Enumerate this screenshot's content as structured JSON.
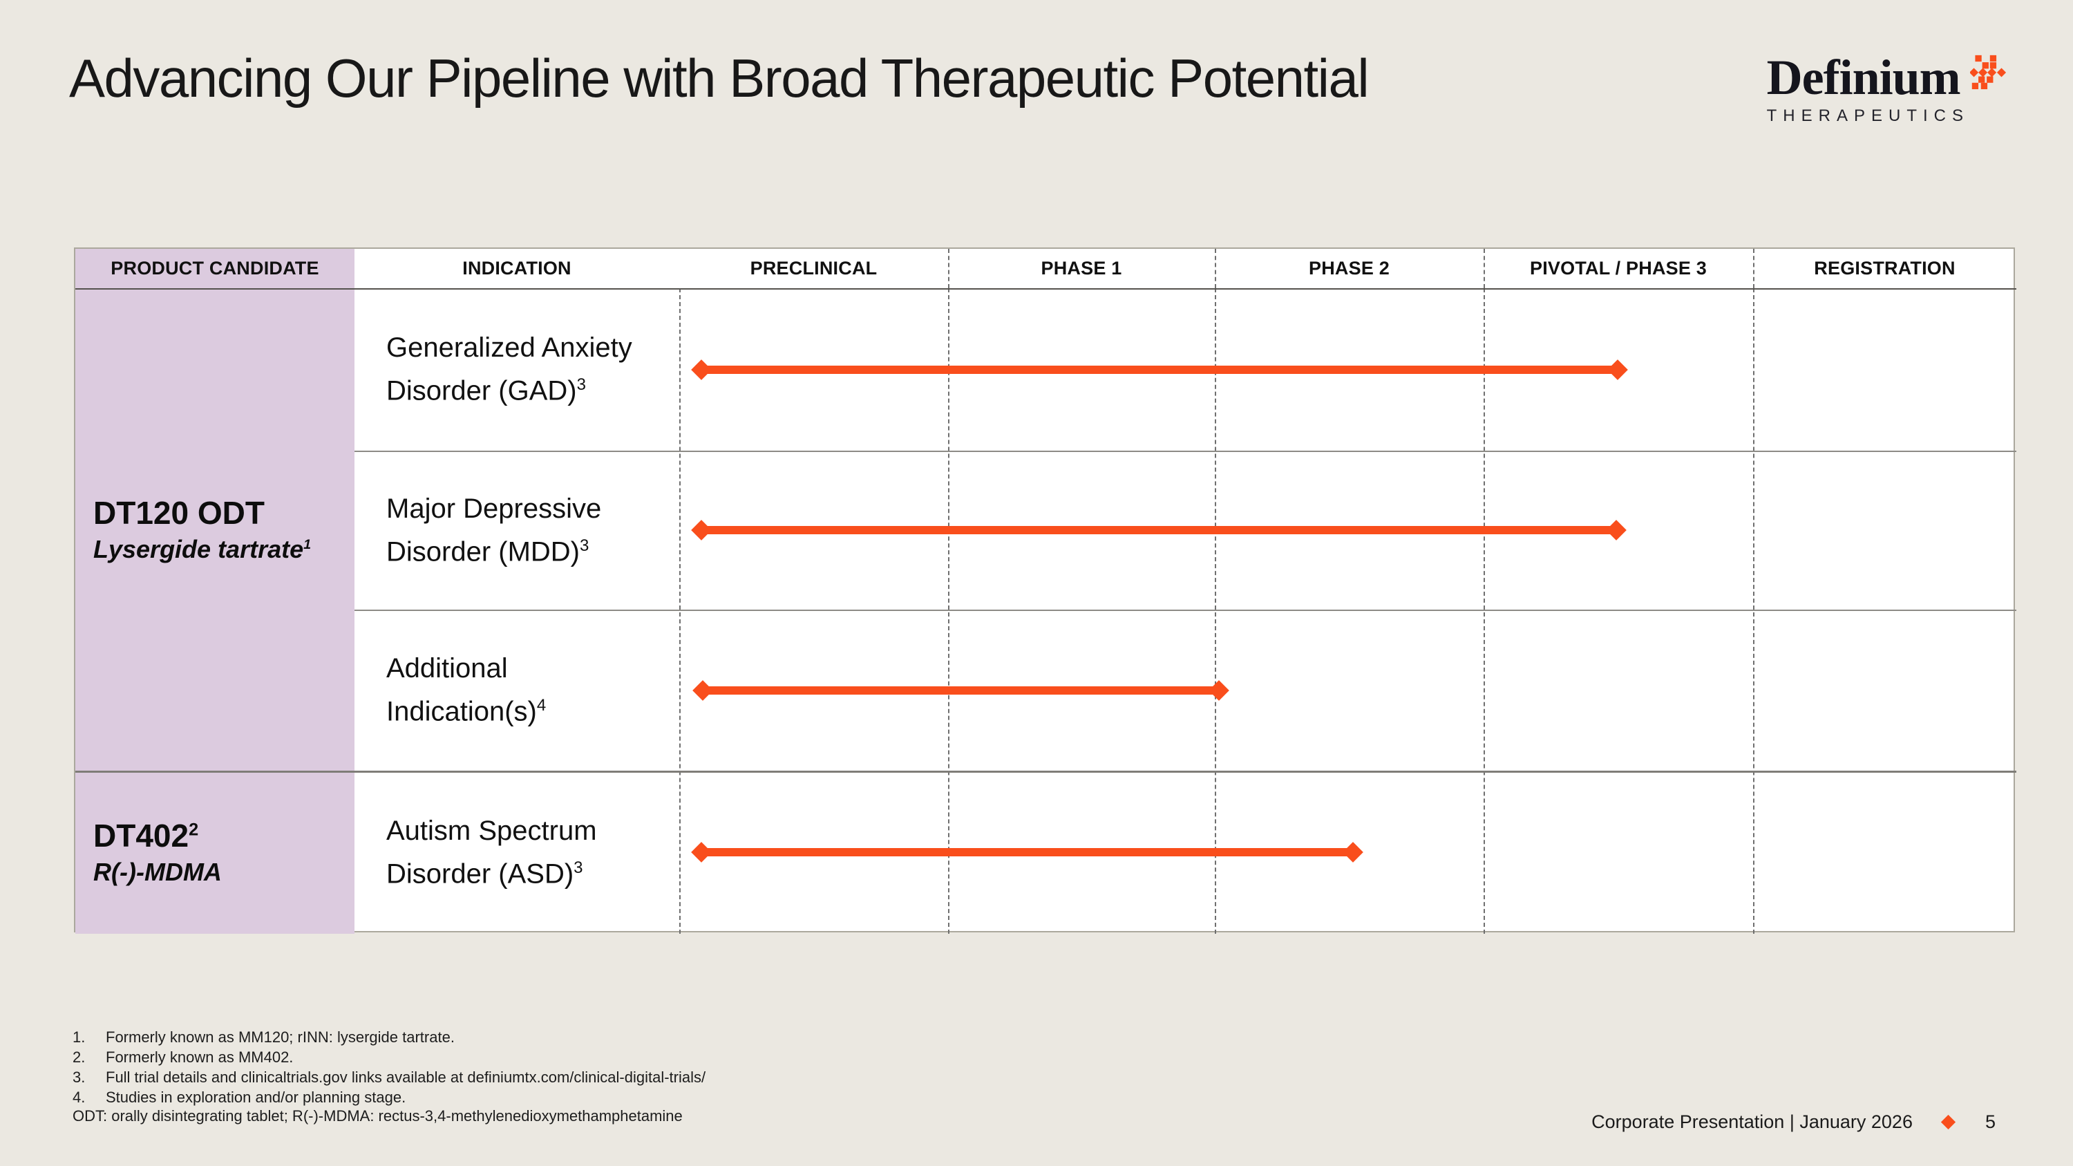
{
  "slide": {
    "title": "Advancing Our Pipeline with Broad Therapeutic Potential",
    "logo": {
      "name": "Definium",
      "subtitle": "THERAPEUTICS"
    },
    "footer": {
      "text": "Corporate Presentation | January 2026",
      "page": "5"
    }
  },
  "colors": {
    "background": "#EBE8E1",
    "accent_orange": "#F94E1C",
    "lavender": "#DCCBDF",
    "table_white": "#FFFFFF",
    "text": "#161616"
  },
  "table": {
    "headers": [
      "PRODUCT CANDIDATE",
      "INDICATION",
      "PRECLINICAL",
      "PHASE 1",
      "PHASE 2",
      "PIVOTAL / PHASE 3",
      "REGISTRATION"
    ],
    "products": [
      {
        "name": "DT120 ODT",
        "name_sup": "",
        "subtitle": "Lysergide tartrate",
        "subtitle_sup": "1",
        "rows": [
          {
            "lines": [
              "Generalized Anxiety",
              "Disorder (GAD)"
            ],
            "sup": "3",
            "bar": {
              "start": 0.0165,
              "end": 0.702,
              "stages_spanned": "Preclinical through mid Pivotal / Phase 3"
            }
          },
          {
            "lines": [
              "Major Depressive",
              "Disorder (MDD)"
            ],
            "sup": "3",
            "bar": {
              "start": 0.0165,
              "end": 0.701,
              "stages_spanned": "Preclinical through mid Pivotal / Phase 3"
            }
          },
          {
            "lines": [
              "Additional",
              "Indication(s)"
            ],
            "sup": "4",
            "bar": {
              "start": 0.0176,
              "end": 0.4036,
              "stages_spanned": "Preclinical through end of Phase 1"
            }
          }
        ]
      },
      {
        "name": "DT402",
        "name_sup": "2",
        "subtitle": "R(-)-MDMA",
        "subtitle_sup": "",
        "rows": [
          {
            "lines": [
              "Autism Spectrum",
              "Disorder (ASD)"
            ],
            "sup": "3",
            "bar": {
              "start": 0.0165,
              "end": 0.5039,
              "stages_spanned": "Preclinical through mid Phase 2"
            }
          }
        ]
      }
    ]
  },
  "footnotes": [
    {
      "num": "1.",
      "text": "Formerly known as MM120; rINN: lysergide tartrate."
    },
    {
      "num": "2.",
      "text": "Formerly known as MM402."
    },
    {
      "num": "3.",
      "text": "Full trial details and clinicaltrials.gov links available at definiumtx.com/clinical-digital-trials/"
    },
    {
      "num": "4.",
      "text": "Studies in exploration and/or planning stage."
    }
  ],
  "abbreviations": "ODT: orally disintegrating tablet; R(-)-MDMA: rectus-3,4-methylenedioxymethamphetamine"
}
